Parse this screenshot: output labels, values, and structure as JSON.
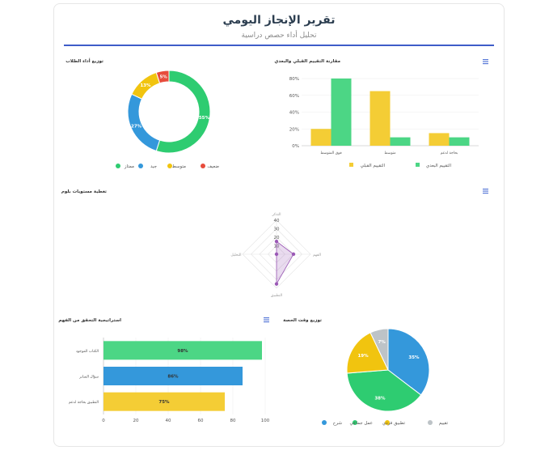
{
  "header": {
    "title": "تقرير الإنجاز اليومي",
    "subtitle": "تحليل أداء حصص دراسية"
  },
  "colors": {
    "accent": "#3e5dc9",
    "green": "#2ecc71",
    "blue": "#3498db",
    "yellow": "#f1c40f",
    "red": "#e74c3c",
    "gray": "#bdc3c7",
    "purple": "#9b59b6",
    "bar_green": "#4cd685",
    "bar_yellow": "#f4cd35"
  },
  "chart_data": [
    {
      "id": "performance",
      "type": "pie",
      "variant": "donut",
      "title": "توزيع أداء الطلاب",
      "slices": [
        {
          "label": "ممتاز",
          "value": 55,
          "color": "#2ecc71"
        },
        {
          "label": "جيد",
          "value": 27,
          "color": "#3498db"
        },
        {
          "label": "متوسط",
          "value": 13,
          "color": "#f1c40f"
        },
        {
          "label": "ضعيف",
          "value": 5,
          "color": "#e74c3c"
        }
      ],
      "legend": "bottom"
    },
    {
      "id": "pre_post",
      "type": "bar",
      "title": "مقارنة التقييم القبلي والبعدي",
      "categories": [
        "فوق المتوسط",
        "متوسط",
        "بحاجة لدعم"
      ],
      "series": [
        {
          "name": "التقييم القبلي",
          "values": [
            20,
            65,
            15
          ],
          "color": "#f4cd35"
        },
        {
          "name": "التقييم البعدي",
          "values": [
            80,
            10,
            10
          ],
          "color": "#4cd685"
        }
      ],
      "ylim": [
        0,
        80
      ],
      "yticks": [
        0,
        20,
        40,
        60,
        80
      ],
      "ytick_suffix": "%",
      "legend": "bottom"
    },
    {
      "id": "coverage",
      "type": "radar",
      "title": "تغطية مستويات بلوم",
      "axes": [
        "التذكر",
        "الفهم",
        "التطبيق",
        "التحليل"
      ],
      "values": [
        15,
        20,
        35,
        0
      ],
      "rmax": 40,
      "ticks": [
        0,
        10,
        20,
        30,
        40
      ],
      "color": "#9b59b6"
    },
    {
      "id": "strategy",
      "type": "bar",
      "orientation": "horizontal",
      "title": "استراتيجية التحقق من الفهم",
      "categories": [
        "الكتاب الموجود ",
        "سؤال السابر",
        "التطبيق بحاجة لدعم"
      ],
      "values": [
        98,
        86,
        75
      ],
      "labels": [
        "98%",
        "86%",
        "75%"
      ],
      "colors": [
        "#4cd685",
        "#3498db",
        "#f4cd35"
      ],
      "xlim": [
        0,
        100
      ],
      "xticks": [
        0,
        20,
        40,
        60,
        80,
        100
      ]
    },
    {
      "id": "time",
      "type": "pie",
      "title": "توزيع وقت الحصة",
      "slices": [
        {
          "label": "شرح",
          "value": 35,
          "color": "#3498db"
        },
        {
          "label": "عمل جماعي",
          "value": 38,
          "color": "#2ecc71"
        },
        {
          "label": "تطبيق فردي",
          "value": 19,
          "color": "#f1c40f"
        },
        {
          "label": "تقييم",
          "value": 7,
          "color": "#bdc3c7"
        }
      ],
      "legend": "bottom"
    }
  ]
}
